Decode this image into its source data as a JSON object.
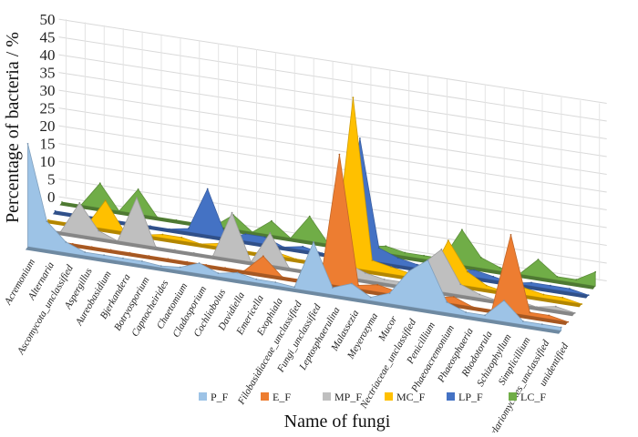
{
  "chart_data": {
    "type": "area",
    "title": "",
    "xlabel": "Name of fungi",
    "ylabel": "Percentage of bacteria / %",
    "ylim": [
      0,
      50
    ],
    "yticks": [
      0,
      5,
      10,
      15,
      20,
      25,
      30,
      35,
      40,
      45,
      50
    ],
    "grid": true,
    "legend_position": "bottom",
    "categories": [
      "Acremonium",
      "Alternaria",
      "Ascomycota_unclassified",
      "Aspergillus",
      "Aureobasidium",
      "Bjerkandera",
      "Botryosporium",
      "Capnocheirides",
      "Chaetomium",
      "Cladosporium",
      "Cochliobolus",
      "Davidiella",
      "Emericella",
      "Exophiala",
      "Filobasidiaceae_unclassified",
      "Fungi_unclassified",
      "Leptosphaerulina",
      "Malassezia",
      "Meyerozyma",
      "Mucor",
      "Nectriaceae_unclassified",
      "Penicillium",
      "Phaeoacremonium",
      "Phaeosphaeria",
      "Rhodotorula",
      "Schizophyllum",
      "Simplicillium",
      "Sordariomycetes_unclassified",
      "unidentified"
    ],
    "series": [
      {
        "name": "P_F",
        "color": "#9dc3e6",
        "values": [
          29,
          8,
          3,
          1,
          1,
          1,
          1,
          0.5,
          1,
          3,
          1,
          2,
          1,
          1,
          0.5,
          14,
          2,
          4,
          1,
          3,
          10,
          14,
          3,
          1,
          1,
          6,
          1,
          1,
          1
        ]
      },
      {
        "name": "E_F",
        "color": "#ed7d31",
        "values": [
          0,
          0,
          0,
          0,
          0,
          0,
          0,
          0,
          0,
          0,
          0,
          0,
          5,
          0,
          0,
          0,
          37,
          1,
          2,
          1,
          0,
          1,
          2,
          0,
          0,
          22,
          1,
          1,
          0
        ]
      },
      {
        "name": "MP_F",
        "color": "#bfbfbf",
        "values": [
          0,
          0,
          9,
          2,
          0,
          13,
          0,
          0,
          0,
          0,
          13,
          0,
          9,
          0,
          0,
          0,
          4,
          2,
          1,
          1,
          7,
          12,
          3,
          1,
          0,
          1,
          0,
          1,
          0
        ]
      },
      {
        "name": "MC_F",
        "color": "#ffc000",
        "values": [
          0,
          0,
          0,
          8,
          0,
          0,
          1,
          1,
          0,
          1,
          0,
          0,
          1,
          0,
          0,
          0,
          48,
          3,
          2,
          1,
          1,
          12,
          4,
          1,
          0,
          2,
          1,
          1,
          0
        ]
      },
      {
        "name": "LP_F",
        "color": "#4472c4",
        "values": [
          0,
          0,
          0,
          0,
          0,
          0,
          0,
          1,
          13,
          0,
          2,
          2,
          0,
          1,
          0,
          0,
          34,
          4,
          2,
          1,
          1,
          1,
          2,
          1,
          0,
          1,
          1,
          1,
          0
        ]
      },
      {
        "name": "LC_F",
        "color": "#70ad47",
        "values": [
          0,
          0,
          7,
          0,
          7,
          0,
          0,
          0,
          0,
          4,
          0,
          4,
          0,
          7,
          0,
          0,
          1,
          2,
          1,
          1,
          1,
          10,
          3,
          1,
          0,
          5,
          1,
          1,
          4
        ]
      }
    ]
  }
}
